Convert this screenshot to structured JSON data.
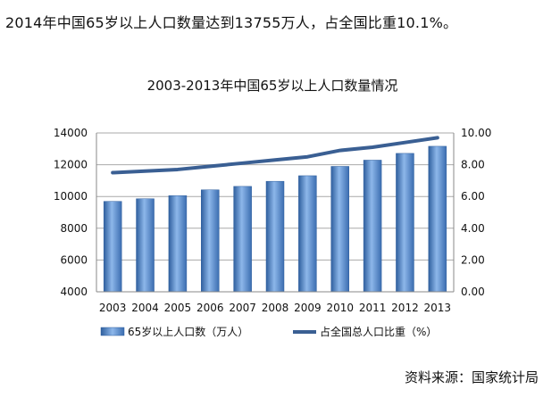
{
  "headline": "2014年中国65岁以上人口数量达到13755万人，占全国比重10.1%。",
  "source": "资料来源：国家统计局",
  "chart_data": {
    "type": "bar",
    "title": "2003-2013年中国65岁以上人口数量情况",
    "categories": [
      "2003",
      "2004",
      "2005",
      "2006",
      "2007",
      "2008",
      "2009",
      "2010",
      "2011",
      "2012",
      "2013"
    ],
    "series": [
      {
        "name": "65岁以上人口数（万人）",
        "type": "bar",
        "axis": "left",
        "values": [
          9692,
          9857,
          10055,
          10419,
          10636,
          10956,
          11307,
          11894,
          12288,
          12714,
          13161
        ],
        "color": "#4a86cc"
      },
      {
        "name": "占全国总人口比重（%）",
        "type": "line",
        "axis": "right",
        "values": [
          7.5,
          7.6,
          7.7,
          7.9,
          8.1,
          8.3,
          8.5,
          8.9,
          9.1,
          9.4,
          9.7
        ],
        "color": "#3a5f93"
      }
    ],
    "y_left": {
      "min": 4000,
      "max": 14000,
      "ticks": [
        "4000",
        "6000",
        "8000",
        "10000",
        "12000",
        "14000"
      ]
    },
    "y_right": {
      "min": 0,
      "max": 10,
      "ticks": [
        "0.00",
        "2.00",
        "4.00",
        "6.00",
        "8.00",
        "10.00"
      ]
    },
    "grid": true,
    "legend_position": "bottom"
  }
}
